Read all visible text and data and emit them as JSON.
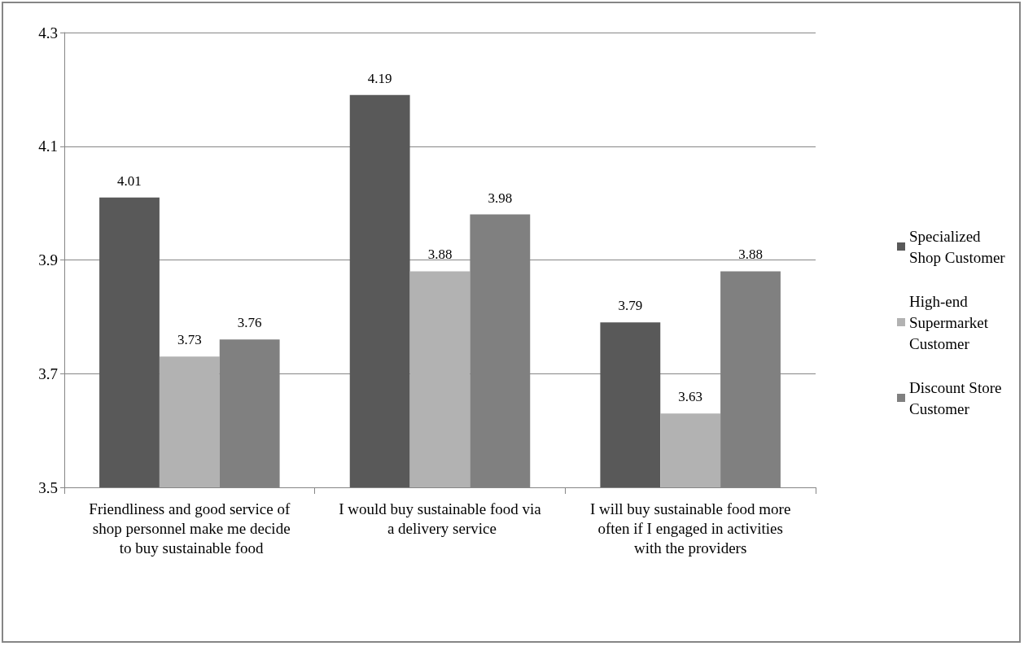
{
  "chart_data": {
    "type": "bar",
    "categories": [
      "Friendliness and good service of shop personnel make me decide to buy sustainable food",
      "I would buy sustainable food via a delivery service",
      "I will buy sustainable food more often if I engaged in activities with the providers"
    ],
    "series": [
      {
        "name": "Specialized Shop Customer",
        "color": "#595959",
        "values": [
          4.01,
          4.19,
          3.79
        ]
      },
      {
        "name": "High-end Supermarket Customer",
        "color": "#b2b2b2",
        "values": [
          3.73,
          3.88,
          3.63
        ]
      },
      {
        "name": "Discount Store Customer",
        "color": "#808080",
        "values": [
          3.76,
          3.98,
          3.88
        ]
      }
    ],
    "ylim": [
      3.5,
      4.3
    ],
    "yticks": [
      3.5,
      3.7,
      3.9,
      4.1,
      4.3
    ],
    "grid": "y",
    "legend": "right",
    "data_labels": true
  }
}
